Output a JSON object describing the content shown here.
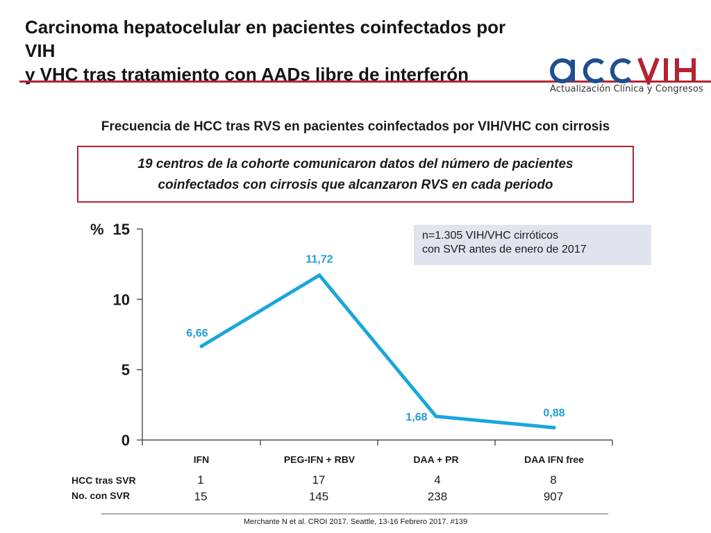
{
  "header": {
    "title_line1": "Carcinoma hepatocelular en pacientes coinfectados por VIH",
    "title_line2": "y VHC tras tratamiento con AADs libre de interferón",
    "logo_text": "acc VIH",
    "logo_subtitle": "Actualización Clínica y Congresos"
  },
  "subtitle": "Frecuencia de HCC tras RVS en pacientes coinfectados por VIH/VHC con cirrosis",
  "note": {
    "line1": "19 centros de la cohorte comunicaron datos del número de pacientes",
    "line2": "coinfectados con cirrosis que alcanzaron RVS en cada periodo"
  },
  "info_box": {
    "line1": "n=1.305 VIH/VHC cirróticos",
    "line2": "con SVR antes de enero de 2017"
  },
  "chart_data": {
    "type": "line",
    "ylabel": "%",
    "ylim": [
      0,
      15
    ],
    "yticks": [
      0,
      5,
      10,
      15
    ],
    "categories": [
      "IFN",
      "PEG-IFN + RBV",
      "DAA + PR",
      "DAA IFN free"
    ],
    "series": [
      {
        "values": [
          6.66,
          11.72,
          1.68,
          0.88
        ],
        "labels": [
          "6,66",
          "11,72",
          "1,68",
          "0,88"
        ]
      }
    ],
    "grid": false,
    "line_color": "#1aa6dc",
    "label_color": "#1f9ed6"
  },
  "table": {
    "rows": [
      {
        "label": "HCC tras SVR",
        "values": [
          "1",
          "17",
          "4",
          "8"
        ]
      },
      {
        "label": "No. con SVR",
        "values": [
          "15",
          "145",
          "238",
          "907"
        ]
      }
    ]
  },
  "source": "Merchante N et al. CROI 2017. Seattle, 13-16 Febrero 2017. #139",
  "colors": {
    "accent_red": "#b52233",
    "logo_blue": "#1d4f91",
    "info_bg": "#dfe4ef"
  }
}
